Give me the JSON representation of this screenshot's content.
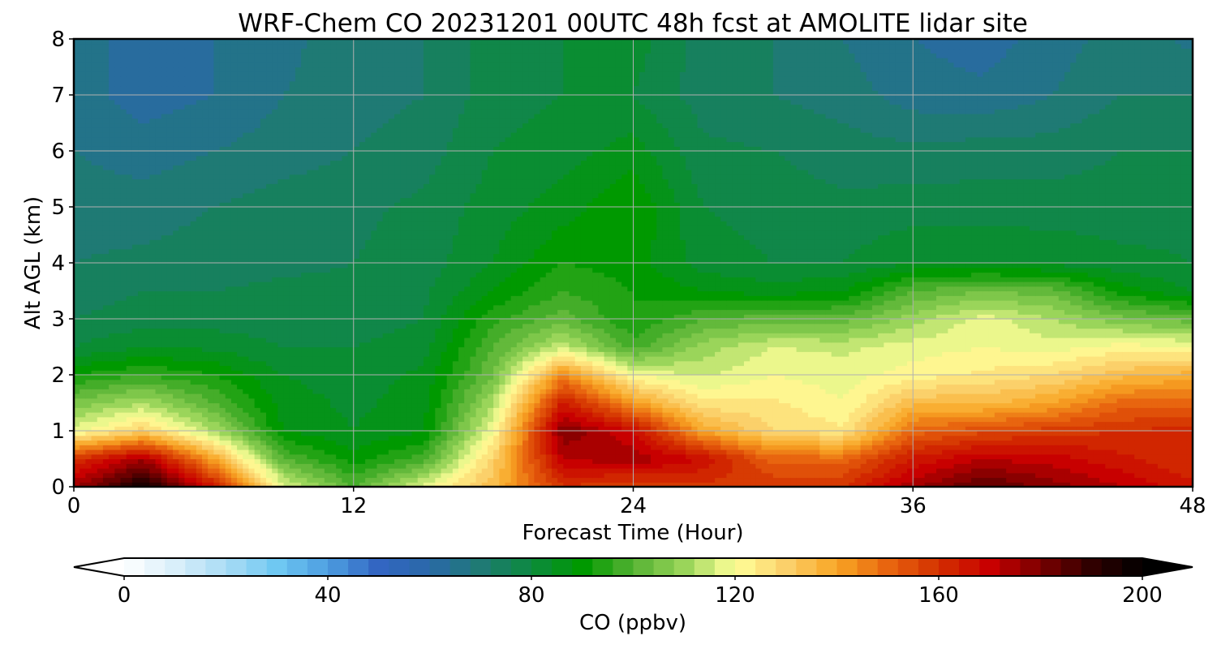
{
  "chart_data": {
    "type": "heatmap",
    "title": "WRF-Chem CO  20231201 00UTC 48h fcst at AMOLITE lidar site",
    "xlabel": "Forecast Time (Hour)",
    "ylabel": "Alt AGL (km)",
    "xlim": [
      0,
      48
    ],
    "ylim": [
      0,
      8
    ],
    "x_ticks": [
      0,
      12,
      24,
      36,
      48
    ],
    "y_ticks": [
      0,
      1,
      2,
      3,
      4,
      5,
      6,
      7,
      8
    ],
    "grid": true,
    "colorbar": {
      "label": "CO  (ppbv)",
      "min": 0,
      "max": 200,
      "ticks": [
        0,
        40,
        80,
        120,
        160,
        200
      ],
      "extend": "both",
      "orientation": "horizontal",
      "placement": "bottom",
      "colors": [
        "#ffffff",
        "#d9effa",
        "#aadcf5",
        "#6fc8f2",
        "#4d9ee0",
        "#3366c2",
        "#2a68a8",
        "#1f7a74",
        "#0c8a3e",
        "#009900",
        "#55b233",
        "#9ad55a",
        "#ffff99",
        "#fbd06a",
        "#f8a624",
        "#e8650f",
        "#d33000",
        "#c80000",
        "#7a0000",
        "#300000",
        "#000000"
      ]
    },
    "time_hours": [
      0,
      3,
      6,
      9,
      12,
      15,
      18,
      21,
      24,
      27,
      30,
      33,
      36,
      39,
      42,
      45,
      48
    ],
    "altitude_km": [
      0,
      0.5,
      1,
      1.5,
      2,
      2.5,
      3,
      3.5,
      4,
      5,
      6,
      7,
      8
    ],
    "co_ppbv": [
      [
        175,
        197,
        165,
        118,
        100,
        118,
        135,
        160,
        155,
        158,
        160,
        160,
        175,
        185,
        178,
        172,
        165
      ],
      [
        160,
        175,
        140,
        100,
        90,
        98,
        130,
        172,
        175,
        168,
        150,
        150,
        165,
        172,
        170,
        165,
        160
      ],
      [
        118,
        130,
        112,
        88,
        84,
        88,
        120,
        180,
        168,
        140,
        128,
        125,
        150,
        155,
        158,
        160,
        162
      ],
      [
        105,
        112,
        100,
        86,
        83,
        86,
        112,
        165,
        142,
        125,
        125,
        120,
        135,
        135,
        140,
        150,
        150
      ],
      [
        92,
        96,
        92,
        84,
        82,
        85,
        104,
        145,
        120,
        115,
        120,
        118,
        122,
        125,
        128,
        135,
        138
      ],
      [
        80,
        84,
        83,
        80,
        80,
        82,
        100,
        115,
        98,
        110,
        116,
        115,
        118,
        120,
        118,
        122,
        120
      ],
      [
        76,
        78,
        78,
        78,
        78,
        80,
        95,
        102,
        92,
        100,
        102,
        102,
        110,
        118,
        112,
        105,
        102
      ],
      [
        74,
        76,
        76,
        77,
        77,
        79,
        88,
        96,
        92,
        88,
        86,
        88,
        100,
        104,
        102,
        90,
        84
      ],
      [
        72,
        73,
        74,
        75,
        76,
        78,
        84,
        92,
        90,
        82,
        80,
        80,
        84,
        84,
        83,
        81,
        80
      ],
      [
        70,
        70,
        72,
        74,
        75,
        77,
        82,
        86,
        92,
        80,
        78,
        77,
        78,
        78,
        78,
        78,
        79
      ],
      [
        68,
        66,
        68,
        70,
        72,
        74,
        80,
        82,
        86,
        77,
        76,
        74,
        73,
        74,
        74,
        76,
        76
      ],
      [
        66,
        62,
        64,
        68,
        70,
        72,
        78,
        80,
        80,
        74,
        72,
        70,
        66,
        65,
        68,
        72,
        72
      ],
      [
        65,
        63,
        64,
        67,
        70,
        72,
        78,
        80,
        82,
        74,
        72,
        68,
        64,
        62,
        66,
        70,
        67
      ]
    ]
  }
}
